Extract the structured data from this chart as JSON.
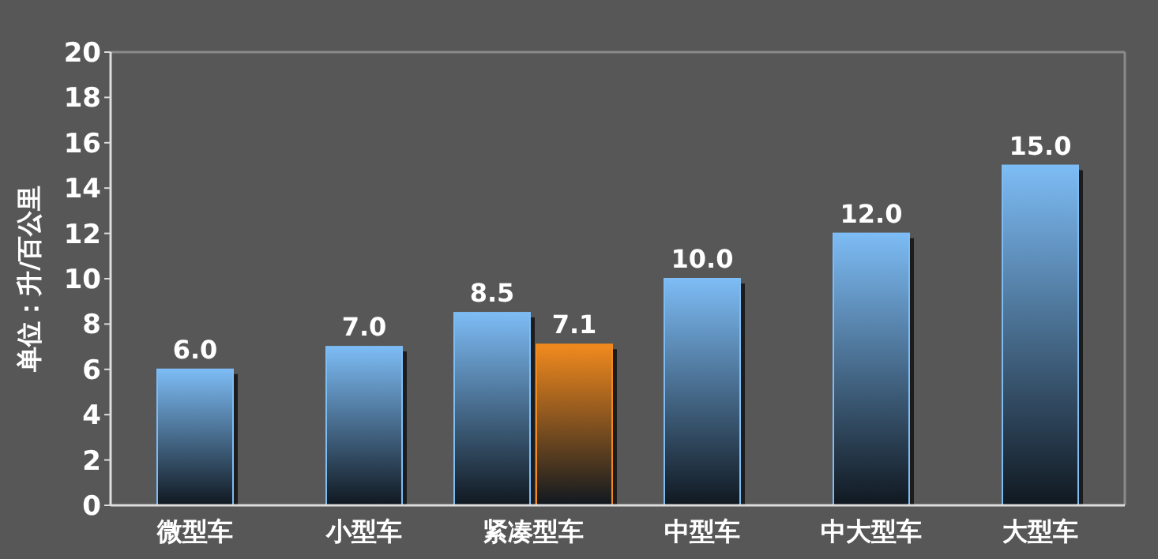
{
  "chart_data": {
    "type": "bar",
    "ylabel": "单位：升/百公里",
    "categories": [
      "微型车",
      "小型车",
      "紧凑型车",
      "中型车",
      "中大型车",
      "大型车"
    ],
    "series": [
      {
        "color": "#7dbcf5",
        "values": [
          6.0,
          7.0,
          8.5,
          10.0,
          12.0,
          15.0
        ],
        "value_labels": [
          "6.0",
          "7.0",
          "8.5",
          "10.0",
          "12.0",
          "15.0"
        ]
      },
      {
        "color": "#f28a1e",
        "values": [
          null,
          null,
          7.1,
          null,
          null,
          null
        ],
        "value_labels": [
          null,
          null,
          "7.1",
          null,
          null,
          null
        ]
      }
    ],
    "ylim": [
      0,
      20
    ],
    "yticks": [
      0,
      2,
      4,
      6,
      8,
      10,
      12,
      14,
      16,
      18,
      20
    ],
    "grid": false
  }
}
